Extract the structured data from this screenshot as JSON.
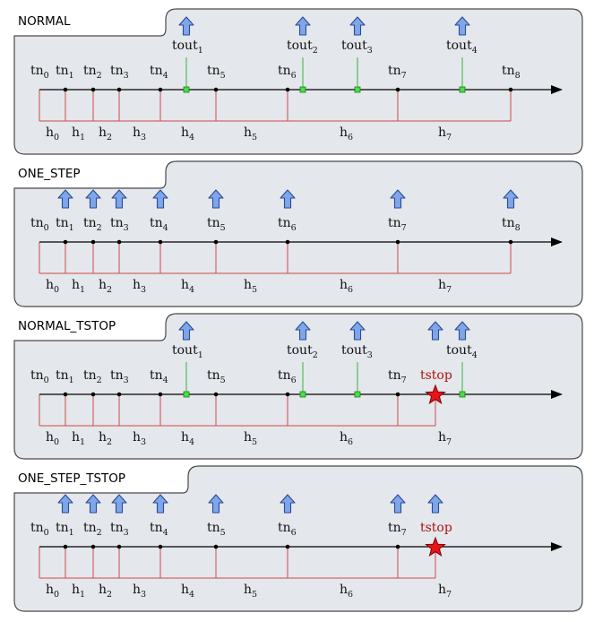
{
  "colors": {
    "panel_fill": "#e4e7eb",
    "panel_stroke": "#4a4a4a",
    "axis": "#000000",
    "red_line": "#d04848",
    "green_line": "#3cb043",
    "green_marker": "#46e046",
    "arrow_fill": "#7ea6e8",
    "arrow_stroke": "#2a4a9a",
    "star_fill": "#e8141c",
    "tstop_text": "#b01010"
  },
  "panels": [
    {
      "title": "NORMAL",
      "arrow_icon": "up-arrow-icon",
      "tn_labels": [
        {
          "base": "tn",
          "sub": "0"
        },
        {
          "base": "tn",
          "sub": "1"
        },
        {
          "base": "tn",
          "sub": "2"
        },
        {
          "base": "tn",
          "sub": "3"
        },
        {
          "base": "tn",
          "sub": "4"
        },
        {
          "base": "tn",
          "sub": "5"
        },
        {
          "base": "tn",
          "sub": "6"
        },
        {
          "base": "tn",
          "sub": "7"
        },
        {
          "base": "tn",
          "sub": "8"
        }
      ],
      "h_labels": [
        {
          "base": "h",
          "sub": "0"
        },
        {
          "base": "h",
          "sub": "1"
        },
        {
          "base": "h",
          "sub": "2"
        },
        {
          "base": "h",
          "sub": "3"
        },
        {
          "base": "h",
          "sub": "4"
        },
        {
          "base": "h",
          "sub": "5"
        },
        {
          "base": "h",
          "sub": "6"
        },
        {
          "base": "h",
          "sub": "7"
        }
      ],
      "tout_labels": [
        {
          "base": "tout",
          "sub": "1"
        },
        {
          "base": "tout",
          "sub": "2"
        },
        {
          "base": "tout",
          "sub": "3"
        },
        {
          "base": "tout",
          "sub": "4"
        }
      ],
      "tstop_label": ""
    },
    {
      "title": "ONE_STEP",
      "arrow_icon": "up-arrow-icon",
      "tn_labels": [
        {
          "base": "tn",
          "sub": "0"
        },
        {
          "base": "tn",
          "sub": "1"
        },
        {
          "base": "tn",
          "sub": "2"
        },
        {
          "base": "tn",
          "sub": "3"
        },
        {
          "base": "tn",
          "sub": "4"
        },
        {
          "base": "tn",
          "sub": "5"
        },
        {
          "base": "tn",
          "sub": "6"
        },
        {
          "base": "tn",
          "sub": "7"
        },
        {
          "base": "tn",
          "sub": "8"
        }
      ],
      "h_labels": [
        {
          "base": "h",
          "sub": "0"
        },
        {
          "base": "h",
          "sub": "1"
        },
        {
          "base": "h",
          "sub": "2"
        },
        {
          "base": "h",
          "sub": "3"
        },
        {
          "base": "h",
          "sub": "4"
        },
        {
          "base": "h",
          "sub": "5"
        },
        {
          "base": "h",
          "sub": "6"
        },
        {
          "base": "h",
          "sub": "7"
        }
      ],
      "tout_labels": [],
      "tstop_label": ""
    },
    {
      "title": "NORMAL_TSTOP",
      "arrow_icon": "up-arrow-icon",
      "tn_labels": [
        {
          "base": "tn",
          "sub": "0"
        },
        {
          "base": "tn",
          "sub": "1"
        },
        {
          "base": "tn",
          "sub": "2"
        },
        {
          "base": "tn",
          "sub": "3"
        },
        {
          "base": "tn",
          "sub": "4"
        },
        {
          "base": "tn",
          "sub": "5"
        },
        {
          "base": "tn",
          "sub": "6"
        },
        {
          "base": "tn",
          "sub": "7"
        }
      ],
      "h_labels": [
        {
          "base": "h",
          "sub": "0"
        },
        {
          "base": "h",
          "sub": "1"
        },
        {
          "base": "h",
          "sub": "2"
        },
        {
          "base": "h",
          "sub": "3"
        },
        {
          "base": "h",
          "sub": "4"
        },
        {
          "base": "h",
          "sub": "5"
        },
        {
          "base": "h",
          "sub": "6"
        },
        {
          "base": "h",
          "sub": "7"
        }
      ],
      "tout_labels": [
        {
          "base": "tout",
          "sub": "1"
        },
        {
          "base": "tout",
          "sub": "2"
        },
        {
          "base": "tout",
          "sub": "3"
        },
        {
          "base": "tout",
          "sub": "4"
        }
      ],
      "tstop_label": "tstop"
    },
    {
      "title": "ONE_STEP_TSTOP",
      "arrow_icon": "up-arrow-icon",
      "tn_labels": [
        {
          "base": "tn",
          "sub": "0"
        },
        {
          "base": "tn",
          "sub": "1"
        },
        {
          "base": "tn",
          "sub": "2"
        },
        {
          "base": "tn",
          "sub": "3"
        },
        {
          "base": "tn",
          "sub": "4"
        },
        {
          "base": "tn",
          "sub": "5"
        },
        {
          "base": "tn",
          "sub": "6"
        },
        {
          "base": "tn",
          "sub": "7"
        }
      ],
      "h_labels": [
        {
          "base": "h",
          "sub": "0"
        },
        {
          "base": "h",
          "sub": "1"
        },
        {
          "base": "h",
          "sub": "2"
        },
        {
          "base": "h",
          "sub": "3"
        },
        {
          "base": "h",
          "sub": "4"
        },
        {
          "base": "h",
          "sub": "5"
        },
        {
          "base": "h",
          "sub": "6"
        },
        {
          "base": "h",
          "sub": "7"
        }
      ],
      "tout_labels": [],
      "tstop_label": "tstop"
    }
  ]
}
